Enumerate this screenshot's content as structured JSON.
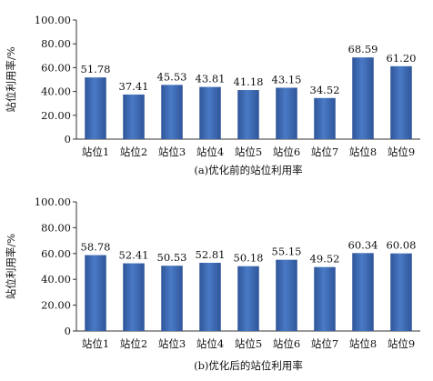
{
  "chart_data": [
    {
      "type": "bar",
      "title": "(a)优化前的站位利用率",
      "xlabel": "",
      "ylabel": "站位利用率/%",
      "categories": [
        "站位1",
        "站位2",
        "站位3",
        "站位4",
        "站位5",
        "站位6",
        "站位7",
        "站位8",
        "站位9"
      ],
      "values": [
        51.78,
        37.41,
        45.53,
        43.81,
        41.18,
        43.15,
        34.52,
        68.59,
        61.2
      ],
      "value_labels": [
        "51.78",
        "37.41",
        "45.53",
        "43.81",
        "41.18",
        "43.15",
        "34.52",
        "68.59",
        "61.20"
      ],
      "ylim": [
        0,
        100
      ],
      "yticks": [
        "0",
        "20.00",
        "40.00",
        "60.00",
        "80.00",
        "100.00"
      ],
      "grid": false,
      "bar_color": "#3B68B4"
    },
    {
      "type": "bar",
      "title": "(b)优化后的站位利用率",
      "xlabel": "",
      "ylabel": "站位利用率/%",
      "categories": [
        "站位1",
        "站位2",
        "站位3",
        "站位4",
        "站位5",
        "站位6",
        "站位7",
        "站位8",
        "站位9"
      ],
      "values": [
        58.78,
        52.41,
        50.53,
        52.81,
        50.18,
        55.15,
        49.52,
        60.34,
        60.08
      ],
      "value_labels": [
        "58.78",
        "52.41",
        "50.53",
        "52.81",
        "50.18",
        "55.15",
        "49.52",
        "60.34",
        "60.08"
      ],
      "ylim": [
        0,
        100
      ],
      "yticks": [
        "0",
        "20.00",
        "40.00",
        "60.00",
        "80.00",
        "100.00"
      ],
      "grid": false,
      "bar_color": "#3B68B4"
    }
  ]
}
